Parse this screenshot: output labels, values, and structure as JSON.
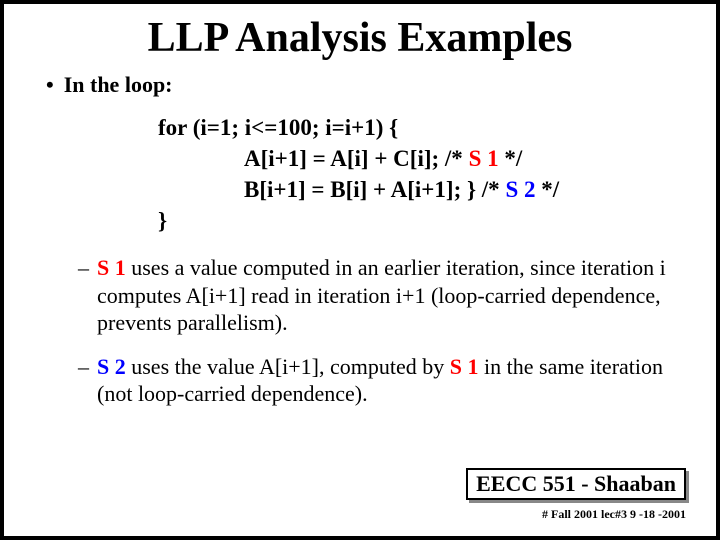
{
  "title": "LLP Analysis Examples",
  "bullet": "In the loop:",
  "code": {
    "line1": "for (i=1; i<=100; i=i+1)  {",
    "line2_a": "A[i+1] = A[i] + C[i];  /*  ",
    "line2_s": "S 1",
    "line2_b": "  */",
    "line3_a": "B[i+1] = B[i] + A[i+1]; }  /* ",
    "line3_s": "S 2",
    "line3_b": "  */",
    "line4": "}"
  },
  "sub1": {
    "s": "S 1",
    "rest": "  uses a value computed in an earlier iteration, since iteration i computes  A[i+1]  read in iteration  i+1  (loop-carried dependence, prevents parallelism)."
  },
  "sub2": {
    "s2": "S 2",
    "mid1": "  uses the value  A[i+1], computed by ",
    "s1": "S 1",
    "mid2": " in the same iteration  (not loop-carried dependence)."
  },
  "footer": "EECC 551 - Shaaban",
  "footer_sub": "#  Fall 2001  lec#3    9 -18 -2001"
}
